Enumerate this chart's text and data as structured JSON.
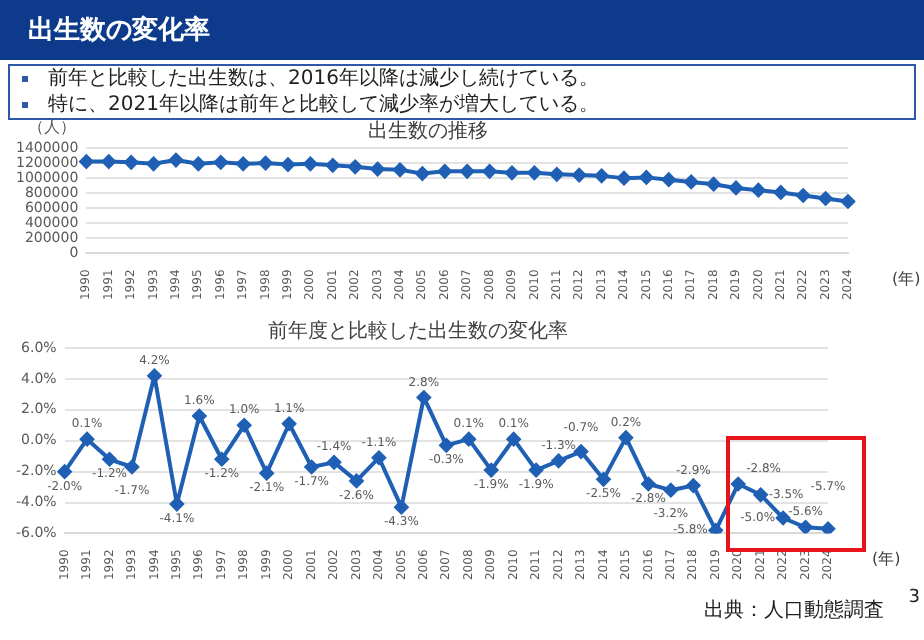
{
  "chart_data": [
    {
      "type": "other",
      "title": "出生数の変化率",
      "annotations": [
        "前年と比較した出生数は、2016年以降は減少し続けている。",
        "特に、2021年以降は前年と比較して減少率が増大している。"
      ]
    },
    {
      "type": "line",
      "title": "出生数の推移",
      "ylabel": "（人）",
      "xlabel": "(年)",
      "categories": [
        "1990",
        "1991",
        "1992",
        "1993",
        "1994",
        "1995",
        "1996",
        "1997",
        "1998",
        "1999",
        "2000",
        "2001",
        "2002",
        "2003",
        "2004",
        "2005",
        "2006",
        "2007",
        "2008",
        "2009",
        "2010",
        "2011",
        "2012",
        "2013",
        "2014",
        "2015",
        "2016",
        "2017",
        "2018",
        "2019",
        "2020",
        "2021",
        "2022",
        "2023",
        "2024"
      ],
      "series": [
        {
          "color": "#1f5fb4",
          "values": [
            1220000,
            1220000,
            1210000,
            1190000,
            1240000,
            1190000,
            1210000,
            1190000,
            1200000,
            1180000,
            1190000,
            1170000,
            1150000,
            1120000,
            1110000,
            1060000,
            1090000,
            1090000,
            1090000,
            1070000,
            1070000,
            1050000,
            1040000,
            1030000,
            1000000,
            1010000,
            980000,
            950000,
            920000,
            870000,
            840000,
            810000,
            770000,
            730000,
            690000
          ]
        }
      ],
      "ylim": [
        0,
        1400000
      ],
      "yticks": [
        0,
        200000,
        400000,
        600000,
        800000,
        1000000,
        1200000,
        1400000
      ],
      "grid": "y",
      "legend": false,
      "marker": "diamond",
      "line_style": "solid"
    },
    {
      "type": "line",
      "title": "前年度と比較した出生数の変化率",
      "xlabel": "(年)",
      "categories": [
        "1990",
        "1991",
        "1992",
        "1993",
        "1994",
        "1995",
        "1996",
        "1997",
        "1998",
        "1999",
        "2000",
        "2001",
        "2002",
        "2003",
        "2004",
        "2005",
        "2006",
        "2007",
        "2008",
        "2009",
        "2010",
        "2011",
        "2012",
        "2013",
        "2014",
        "2015",
        "2016",
        "2017",
        "2018",
        "2019",
        "2020",
        "2021",
        "2022",
        "2023",
        "2024"
      ],
      "series": [
        {
          "color": "#1f5fb4",
          "values": [
            -2.0,
            0.1,
            -1.2,
            -1.7,
            4.2,
            -4.1,
            1.6,
            -1.2,
            1.0,
            -2.1,
            1.1,
            -1.7,
            -1.4,
            -2.6,
            -1.1,
            -4.3,
            2.8,
            -0.3,
            0.1,
            -1.9,
            0.1,
            -1.9,
            -1.3,
            -0.7,
            -2.5,
            0.2,
            -2.8,
            -3.2,
            -2.9,
            -5.8,
            -2.8,
            -3.5,
            -5.0,
            -5.6,
            -5.7
          ],
          "value_labels": [
            "-2.0%",
            "0.1%",
            "-1.2%",
            "-1.7%",
            "4.2%",
            "-4.1%",
            "1.6%",
            "-1.2%",
            "1.0%",
            "-2.1%",
            "1.1%",
            "-1.7%",
            "-1.4%",
            "-2.6%",
            "-1.1%",
            "-4.3%",
            "2.8%",
            "-0.3%",
            "0.1%",
            "-1.9%",
            "0.1%",
            "-1.9%",
            "-1.3%",
            "-0.7%",
            "-2.5%",
            "0.2%",
            "-2.8%",
            "-3.2%",
            "-2.9%",
            "-5.8%",
            "-2.8%",
            "-3.5%",
            "-5.0%",
            "-5.6%",
            "-5.7%"
          ]
        }
      ],
      "ylim": [
        -6,
        6
      ],
      "yticks": [
        {
          "value": -6,
          "label": "-6.0%"
        },
        {
          "value": -4,
          "label": "-4.0%"
        },
        {
          "value": -2,
          "label": "-2.0%"
        },
        {
          "value": 0,
          "label": "0.0%"
        },
        {
          "value": 2,
          "label": "2.0%"
        },
        {
          "value": 4,
          "label": "4.0%"
        },
        {
          "value": 6,
          "label": "6.0%"
        }
      ],
      "grid": "y",
      "legend": false,
      "marker": "diamond",
      "line_style": "solid",
      "annotations": [
        "出典：人口動態調査",
        "3"
      ]
    }
  ]
}
